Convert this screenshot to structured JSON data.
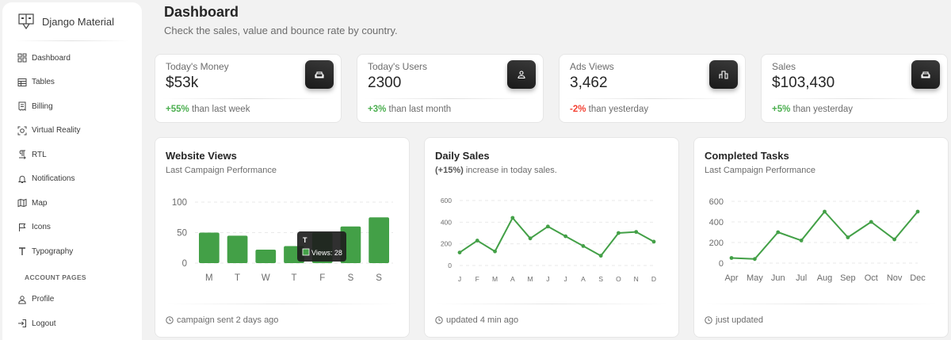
{
  "sidebar": {
    "brand": "Django Material",
    "items": [
      {
        "label": "Dashboard",
        "icon": "dashboard-icon"
      },
      {
        "label": "Tables",
        "icon": "table-icon"
      },
      {
        "label": "Billing",
        "icon": "receipt-icon"
      },
      {
        "label": "Virtual Reality",
        "icon": "view-in-ar-icon"
      },
      {
        "label": "RTL",
        "icon": "format-textdirection-icon"
      },
      {
        "label": "Notifications",
        "icon": "bell-icon"
      },
      {
        "label": "Map",
        "icon": "map-icon"
      },
      {
        "label": "Icons",
        "icon": "flag-icon"
      },
      {
        "label": "Typography",
        "icon": "text-icon"
      }
    ],
    "section_title": "ACCOUNT PAGES",
    "account_items": [
      {
        "label": "Profile",
        "icon": "person-icon"
      },
      {
        "label": "Logout",
        "icon": "login-icon"
      }
    ]
  },
  "header": {
    "title": "Dashboard",
    "subtitle": "Check the sales, value and bounce rate by country."
  },
  "stats": [
    {
      "label": "Today's Money",
      "value": "$53k",
      "change": "+55%",
      "change_type": "positive",
      "suffix": "than last week",
      "icon": "weekend-icon"
    },
    {
      "label": "Today's Users",
      "value": "2300",
      "change": "+3%",
      "change_type": "positive",
      "suffix": "than last month",
      "icon": "person-icon"
    },
    {
      "label": "Ads Views",
      "value": "3,462",
      "change": "-2%",
      "change_type": "negative",
      "suffix": "than yesterday",
      "icon": "leaderboard-icon"
    },
    {
      "label": "Sales",
      "value": "$103,430",
      "change": "+5%",
      "change_type": "positive",
      "suffix": "than yesterday",
      "icon": "weekend-icon"
    }
  ],
  "cards": [
    {
      "title": "Website Views",
      "subtitle": "Last Campaign Performance",
      "footer": "campaign sent 2 days ago"
    },
    {
      "title": "Daily Sales",
      "subtitle_bold": "(+15%)",
      "subtitle": "increase in today sales.",
      "footer": "updated 4 min ago"
    },
    {
      "title": "Completed Tasks",
      "subtitle": "Last Campaign Performance",
      "footer": "just updated"
    }
  ],
  "tooltip": {
    "title": "T",
    "text": "Views: 28"
  },
  "colors": {
    "accent": "#43a047",
    "dark": "#191919",
    "positive": "#4caf50",
    "negative": "#f44335"
  },
  "chart_data": [
    {
      "type": "bar",
      "categories": [
        "M",
        "T",
        "W",
        "T",
        "F",
        "S",
        "S"
      ],
      "values": [
        50,
        45,
        22,
        28,
        50,
        60,
        75
      ],
      "ylim": [
        0,
        100
      ],
      "yticks": [
        0,
        50,
        100
      ],
      "grid": true
    },
    {
      "type": "line",
      "categories": [
        "J",
        "F",
        "M",
        "A",
        "M",
        "J",
        "J",
        "A",
        "S",
        "O",
        "N",
        "D"
      ],
      "values": [
        120,
        230,
        130,
        440,
        250,
        360,
        270,
        180,
        90,
        300,
        310,
        220
      ],
      "ylim": [
        0,
        600
      ],
      "yticks": [
        0,
        200,
        400,
        600
      ],
      "grid": true
    },
    {
      "type": "line",
      "categories": [
        "Apr",
        "May",
        "Jun",
        "Jul",
        "Aug",
        "Sep",
        "Oct",
        "Nov",
        "Dec"
      ],
      "values": [
        50,
        40,
        300,
        220,
        500,
        250,
        400,
        230,
        500
      ],
      "ylim": [
        0,
        600
      ],
      "yticks": [
        0,
        200,
        400,
        600
      ],
      "grid": true
    }
  ]
}
